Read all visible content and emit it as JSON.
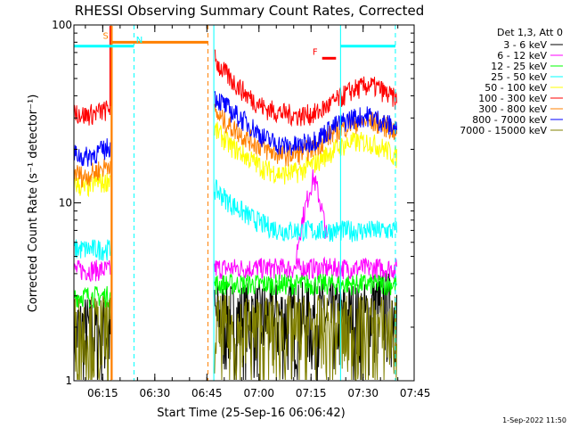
{
  "chart_data": {
    "type": "line",
    "title": "RHESSI Observing Summary Count Rates, Corrected",
    "xlabel": "Start Time (25-Sep-16 06:06:42)",
    "ylabel": "Corrected Count Rate (s⁻¹ detector⁻¹)",
    "y_scale": "log",
    "ylim": [
      1,
      100
    ],
    "y_ticks": [
      {
        "value": 1,
        "label": "1"
      },
      {
        "value": 10,
        "label": "10"
      },
      {
        "value": 100,
        "label": "100"
      }
    ],
    "x_unit": "minutes after 06:06:42",
    "xlim": [
      0,
      98
    ],
    "x_ticks": [
      {
        "value": 8.3,
        "label": "06:15"
      },
      {
        "value": 23.3,
        "label": "06:30"
      },
      {
        "value": 38.3,
        "label": "06:45"
      },
      {
        "value": 53.3,
        "label": "07:00"
      },
      {
        "value": 68.3,
        "label": "07:15"
      },
      {
        "value": 83.3,
        "label": "07:30"
      },
      {
        "value": 98.3,
        "label": "07:45"
      }
    ],
    "legend_header": "Det 1,3, Att 0",
    "legend_position": "top-right, outside plot",
    "series": [
      {
        "name": "3 - 6 keV",
        "color": "#000000",
        "style": "noisy-low",
        "segments": [
          {
            "x": [
              0,
              10.5
            ],
            "y": [
              1.6,
              1.6
            ]
          },
          {
            "x": [
              40.5,
              85.5
            ],
            "y": [
              1.9,
              1.9
            ]
          },
          {
            "x": [
              85.5,
              93
            ],
            "y": [
              2.2,
              2.2
            ]
          }
        ]
      },
      {
        "name": "6 - 12 keV",
        "color": "#ff00ff",
        "style": "noisy",
        "segments": [
          {
            "x": [
              0,
              10.5
            ],
            "y": [
              4.2,
              4.2
            ]
          },
          {
            "x": [
              40.5,
              93
            ],
            "y": [
              4.3,
              4.3
            ]
          },
          {
            "x": [
              64,
              67,
              69,
              71,
              73
            ],
            "y": [
              5,
              10,
              14,
              10,
              6
            ]
          }
        ]
      },
      {
        "name": "12 - 25 keV",
        "color": "#00ff00",
        "style": "noisy",
        "segments": [
          {
            "x": [
              0,
              10.5
            ],
            "y": [
              3,
              3
            ]
          },
          {
            "x": [
              40.5,
              93
            ],
            "y": [
              3.5,
              3.5
            ]
          }
        ]
      },
      {
        "name": "25 - 50 keV",
        "color": "#00ffff",
        "style": "noisy",
        "segments": [
          {
            "x": [
              0,
              10.5
            ],
            "y": [
              5.5,
              5.5
            ]
          },
          {
            "x": [
              40.5,
              45,
              50,
              55,
              60,
              65,
              70,
              75,
              80,
              85,
              93
            ],
            "y": [
              12,
              10,
              8.5,
              7.5,
              7,
              7,
              7,
              7,
              7,
              7,
              7
            ]
          }
        ]
      },
      {
        "name": "50 - 100 keV",
        "color": "#ffff00",
        "style": "noisy",
        "segments": [
          {
            "x": [
              0,
              3,
              6,
              9,
              10.5
            ],
            "y": [
              13,
              12,
              13,
              13,
              14
            ]
          },
          {
            "x": [
              40.5,
              45,
              50,
              55,
              60,
              65,
              70,
              75,
              80,
              85,
              90,
              93
            ],
            "y": [
              26,
              21,
              18,
              15.5,
              14.5,
              15,
              17,
              20,
              22,
              22,
              20,
              18
            ]
          }
        ]
      },
      {
        "name": "100 - 300 keV",
        "color": "#ff0000",
        "style": "noisy",
        "segments": [
          {
            "x": [
              0,
              3,
              6,
              9,
              10.5
            ],
            "y": [
              33,
              31,
              32,
              33,
              35
            ]
          },
          {
            "x": [
              40.5,
              42,
              45,
              50,
              55,
              60,
              65,
              70,
              75,
              80,
              85,
              88,
              90,
              93
            ],
            "y": [
              65,
              58,
              50,
              40,
              34,
              32,
              31,
              32,
              37,
              43,
              46,
              44,
              41,
              38
            ]
          }
        ]
      },
      {
        "name": "300 - 800 keV",
        "color": "#ff8000",
        "style": "noisy",
        "segments": [
          {
            "x": [
              0,
              3,
              6,
              9,
              10.5
            ],
            "y": [
              15,
              14,
              15,
              16,
              17
            ]
          },
          {
            "x": [
              40.5,
              45,
              50,
              55,
              60,
              65,
              70,
              75,
              80,
              85,
              90,
              93
            ],
            "y": [
              32,
              27,
              23,
              20,
              18.5,
              19,
              21,
              25,
              28,
              29,
              27,
              25
            ]
          }
        ]
      },
      {
        "name": "800 - 7000 keV",
        "color": "#0000ff",
        "style": "noisy",
        "segments": [
          {
            "x": [
              0,
              3,
              6,
              9,
              10.5
            ],
            "y": [
              19,
              18,
              19,
              20,
              21
            ]
          },
          {
            "x": [
              40.5,
              45,
              50,
              55,
              60,
              65,
              70,
              75,
              80,
              85,
              90,
              93
            ],
            "y": [
              40,
              33,
              28,
              23,
              21,
              21,
              23,
              27,
              30,
              31,
              28,
              26
            ]
          }
        ]
      },
      {
        "name": "7000 - 15000 keV",
        "color": "#808000",
        "style": "noisy-low",
        "segments": [
          {
            "x": [
              0,
              10.5
            ],
            "y": [
              1.6,
              1.6
            ]
          },
          {
            "x": [
              40.5,
              93
            ],
            "y": [
              1.6,
              1.6
            ]
          }
        ]
      }
    ],
    "vertical_markers": [
      {
        "x": 10.7,
        "color": "#ff8000",
        "style": "solid"
      },
      {
        "x": 17.3,
        "color": "#00ffff",
        "style": "dashed"
      },
      {
        "x": 38.6,
        "color": "#ff8000",
        "style": "dashed"
      },
      {
        "x": 40.3,
        "color": "#00ffff",
        "style": "solid"
      },
      {
        "x": 76.8,
        "color": "#00ffff",
        "style": "solid"
      },
      {
        "x": 92.6,
        "color": "#00ffff",
        "style": "dashed"
      }
    ],
    "flag_bars": [
      {
        "label": "S",
        "color": "#ff8000",
        "x": [
          10.7,
          38.6
        ],
        "y": 80
      },
      {
        "label": "N",
        "color": "#00ffff",
        "x": [
          0,
          17.3
        ],
        "y": 76
      },
      {
        "label": "",
        "color": "#00ffff",
        "x": [
          76.8,
          92.6
        ],
        "y": 76
      },
      {
        "label": "F",
        "color": "#ff0000",
        "x": [
          71.5,
          75.5
        ],
        "y": 65
      }
    ],
    "transitions": [
      {
        "x": 10.5,
        "color": "#ff0000",
        "y": [
          35,
          100
        ]
      },
      {
        "x": 10.9,
        "color": "#ff8000",
        "y": [
          1,
          100
        ]
      }
    ]
  },
  "footer": {
    "timestamp": "1-Sep-2022 11:50"
  }
}
